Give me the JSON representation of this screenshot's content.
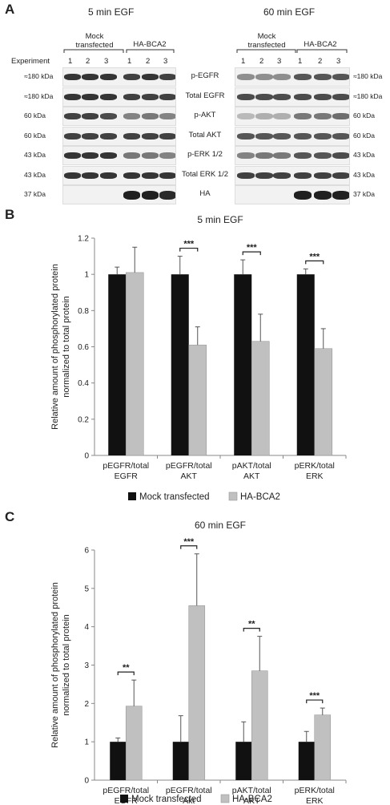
{
  "panel_a": {
    "letter": "A",
    "left_title": "5 min EGF",
    "right_title": "60 min EGF",
    "group_mock": "Mock transfected",
    "group_mock_line1": "Mock",
    "group_mock_line2": "transfected",
    "group_ha": "HA-BCA2",
    "experiment_label": "Experiment",
    "lanes": [
      "1",
      "2",
      "3",
      "1",
      "2",
      "3"
    ],
    "rows": [
      {
        "protein": "p-EGFR",
        "kda_left": "≈180 kDa",
        "kda_right": "≈180 kDa"
      },
      {
        "protein": "Total EGFR",
        "kda_left": "≈180 kDa",
        "kda_right": "≈180 kDa"
      },
      {
        "protein": "p-AKT",
        "kda_left": "60 kDa",
        "kda_right": "60 kDa"
      },
      {
        "protein": "Total AKT",
        "kda_left": "60 kDa",
        "kda_right": "60 kDa"
      },
      {
        "protein": "p-ERK 1/2",
        "kda_left": "43 kDa",
        "kda_right": "43 kDa"
      },
      {
        "protein": "Total ERK 1/2",
        "kda_left": "43 kDa",
        "kda_right": "43 kDa"
      },
      {
        "protein": "HA",
        "kda_left": "37 kDa",
        "kda_right": "37 kDa"
      }
    ]
  },
  "colors": {
    "mock": "#111111",
    "ha": "#c0c0c0",
    "axis": "#888888"
  },
  "chart_data": [
    {
      "letter": "B",
      "type": "bar",
      "title": "5 min EGF",
      "ylabel_line1": "Relative amount of phosphorylated protein",
      "ylabel_line2": "normalized to total protein",
      "ylim": [
        0,
        1.2
      ],
      "yticks": [
        "0",
        "0.2",
        "0.4",
        "0.6",
        "0.8",
        "1",
        "1.2"
      ],
      "categories": [
        "pEGFR/total EGFR",
        "pEGFR/total AKT",
        "pAKT/total AKT",
        "pERK/total ERK"
      ],
      "category_labels": [
        [
          "pEGFR/total",
          "EGFR"
        ],
        [
          "pEGFR/total",
          "AKT"
        ],
        [
          "pAKT/total",
          "AKT"
        ],
        [
          "pERK/total",
          "ERK"
        ]
      ],
      "series": [
        {
          "name": "Mock transfected",
          "values": [
            1.0,
            1.0,
            1.0,
            1.0
          ],
          "errors": [
            0.04,
            0.1,
            0.08,
            0.03
          ]
        },
        {
          "name": "HA-BCA2",
          "values": [
            1.01,
            0.61,
            0.63,
            0.59
          ],
          "errors": [
            0.14,
            0.1,
            0.15,
            0.11
          ]
        }
      ],
      "significance": [
        "",
        "***",
        "***",
        "***"
      ],
      "grid": false,
      "legend": "bottom"
    },
    {
      "letter": "C",
      "type": "bar",
      "title": "60 min EGF",
      "ylabel_line1": "Relative amount of phosphorylated protein",
      "ylabel_line2": "normalized to total protein",
      "ylim": [
        0,
        6
      ],
      "yticks": [
        "0",
        "1",
        "2",
        "3",
        "4",
        "5",
        "6"
      ],
      "categories": [
        "pEGFR/total EGFR",
        "pEGFR/total Akt",
        "pAKT/total AKT",
        "pERK/total ERK"
      ],
      "category_labels": [
        [
          "pEGFR/total",
          "EGFR"
        ],
        [
          "pEGFR/total",
          "Akt"
        ],
        [
          "pAKT/total",
          "AKT"
        ],
        [
          "pERK/total",
          "ERK"
        ]
      ],
      "series": [
        {
          "name": "Mock transfected",
          "values": [
            1.0,
            1.0,
            1.0,
            1.0
          ],
          "errors": [
            0.1,
            0.68,
            0.52,
            0.27
          ]
        },
        {
          "name": "HA-BCA2",
          "values": [
            1.93,
            4.55,
            2.85,
            1.7
          ],
          "errors": [
            0.68,
            1.35,
            0.9,
            0.18
          ]
        }
      ],
      "significance": [
        "**",
        "***",
        "**",
        "***"
      ],
      "grid": false,
      "legend": "bottom"
    }
  ]
}
